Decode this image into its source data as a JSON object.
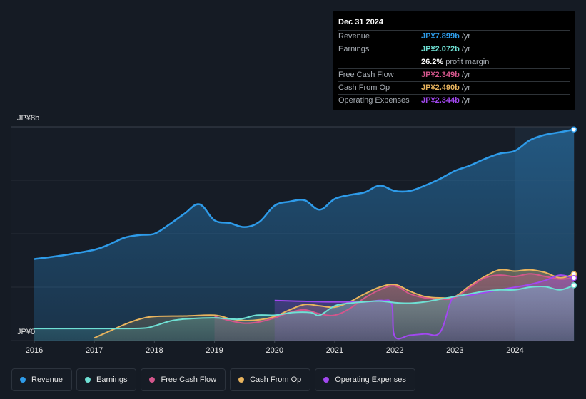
{
  "chart_data": {
    "type": "area",
    "x_labels": [
      "2016",
      "2017",
      "2018",
      "2019",
      "2020",
      "2021",
      "2022",
      "2023",
      "2024"
    ],
    "x_range": [
      2015.95,
      2024.98
    ],
    "y_labels": {
      "top": "JP¥8b",
      "bottom": "JP¥0"
    },
    "ylim": [
      0,
      8
    ],
    "forecast_start": 2024.0,
    "series": [
      {
        "key": "revenue",
        "name": "Revenue",
        "color": "#2e9be9",
        "points": [
          [
            2016,
            3.05
          ],
          [
            2016.5,
            3.2
          ],
          [
            2017,
            3.4
          ],
          [
            2017.25,
            3.6
          ],
          [
            2017.5,
            3.85
          ],
          [
            2017.75,
            3.95
          ],
          [
            2018,
            4.0
          ],
          [
            2018.25,
            4.35
          ],
          [
            2018.5,
            4.75
          ],
          [
            2018.75,
            5.1
          ],
          [
            2019,
            4.5
          ],
          [
            2019.25,
            4.4
          ],
          [
            2019.5,
            4.25
          ],
          [
            2019.75,
            4.45
          ],
          [
            2020,
            5.05
          ],
          [
            2020.25,
            5.2
          ],
          [
            2020.5,
            5.25
          ],
          [
            2020.75,
            4.9
          ],
          [
            2021,
            5.3
          ],
          [
            2021.25,
            5.45
          ],
          [
            2021.5,
            5.55
          ],
          [
            2021.75,
            5.8
          ],
          [
            2022,
            5.6
          ],
          [
            2022.25,
            5.6
          ],
          [
            2022.5,
            5.8
          ],
          [
            2022.75,
            6.05
          ],
          [
            2023,
            6.35
          ],
          [
            2023.25,
            6.55
          ],
          [
            2023.5,
            6.8
          ],
          [
            2023.75,
            7.0
          ],
          [
            2024,
            7.1
          ],
          [
            2024.25,
            7.5
          ],
          [
            2024.5,
            7.7
          ],
          [
            2024.75,
            7.8
          ],
          [
            2024.98,
            7.9
          ]
        ]
      },
      {
        "key": "earnings",
        "name": "Earnings",
        "color": "#6fe0d4",
        "points": [
          [
            2016,
            0.45
          ],
          [
            2016.5,
            0.45
          ],
          [
            2017,
            0.45
          ],
          [
            2017.5,
            0.45
          ],
          [
            2017.85,
            0.47
          ],
          [
            2018,
            0.55
          ],
          [
            2018.3,
            0.75
          ],
          [
            2018.6,
            0.82
          ],
          [
            2019,
            0.85
          ],
          [
            2019.4,
            0.8
          ],
          [
            2019.7,
            0.95
          ],
          [
            2020,
            0.95
          ],
          [
            2020.3,
            1.05
          ],
          [
            2020.6,
            1.05
          ],
          [
            2020.75,
            0.95
          ],
          [
            2021,
            1.3
          ],
          [
            2021.25,
            1.4
          ],
          [
            2021.5,
            1.45
          ],
          [
            2021.75,
            1.48
          ],
          [
            2022,
            1.42
          ],
          [
            2022.25,
            1.4
          ],
          [
            2022.5,
            1.45
          ],
          [
            2022.75,
            1.55
          ],
          [
            2023,
            1.65
          ],
          [
            2023.25,
            1.75
          ],
          [
            2023.5,
            1.85
          ],
          [
            2023.75,
            1.9
          ],
          [
            2024,
            1.9
          ],
          [
            2024.25,
            2.0
          ],
          [
            2024.5,
            2.02
          ],
          [
            2024.75,
            1.9
          ],
          [
            2024.98,
            2.07
          ]
        ]
      },
      {
        "key": "fcf",
        "name": "Free Cash Flow",
        "color": "#d4568c",
        "points": [
          [
            2019,
            0.9
          ],
          [
            2019.25,
            0.75
          ],
          [
            2019.5,
            0.65
          ],
          [
            2019.75,
            0.7
          ],
          [
            2020,
            0.85
          ],
          [
            2020.25,
            1.05
          ],
          [
            2020.5,
            1.15
          ],
          [
            2020.75,
            1.0
          ],
          [
            2021,
            0.95
          ],
          [
            2021.25,
            1.2
          ],
          [
            2021.5,
            1.6
          ],
          [
            2021.75,
            1.9
          ],
          [
            2022,
            2.05
          ],
          [
            2022.25,
            1.75
          ],
          [
            2022.5,
            1.6
          ],
          [
            2022.75,
            1.55
          ],
          [
            2023,
            1.6
          ],
          [
            2023.25,
            2.0
          ],
          [
            2023.5,
            2.35
          ],
          [
            2023.75,
            2.45
          ],
          [
            2024,
            2.4
          ],
          [
            2024.25,
            2.5
          ],
          [
            2024.5,
            2.4
          ],
          [
            2024.75,
            2.3
          ],
          [
            2024.98,
            2.35
          ]
        ]
      },
      {
        "key": "cfo",
        "name": "Cash From Op",
        "color": "#e9b45e",
        "points": [
          [
            2017,
            0.1
          ],
          [
            2017.25,
            0.35
          ],
          [
            2017.5,
            0.6
          ],
          [
            2017.75,
            0.8
          ],
          [
            2018,
            0.9
          ],
          [
            2018.5,
            0.92
          ],
          [
            2019,
            0.95
          ],
          [
            2019.25,
            0.82
          ],
          [
            2019.5,
            0.75
          ],
          [
            2019.75,
            0.78
          ],
          [
            2020,
            0.9
          ],
          [
            2020.25,
            1.15
          ],
          [
            2020.5,
            1.35
          ],
          [
            2020.75,
            1.3
          ],
          [
            2021,
            1.25
          ],
          [
            2021.25,
            1.45
          ],
          [
            2021.5,
            1.75
          ],
          [
            2021.75,
            2.0
          ],
          [
            2022,
            2.1
          ],
          [
            2022.25,
            1.85
          ],
          [
            2022.5,
            1.65
          ],
          [
            2022.75,
            1.6
          ],
          [
            2023,
            1.65
          ],
          [
            2023.25,
            2.05
          ],
          [
            2023.5,
            2.4
          ],
          [
            2023.75,
            2.65
          ],
          [
            2024,
            2.6
          ],
          [
            2024.25,
            2.65
          ],
          [
            2024.5,
            2.55
          ],
          [
            2024.75,
            2.35
          ],
          [
            2024.98,
            2.49
          ]
        ]
      },
      {
        "key": "opex",
        "name": "Operating Expenses",
        "color": "#a248f0",
        "points": [
          [
            2020,
            1.5
          ],
          [
            2020.5,
            1.47
          ],
          [
            2021,
            1.45
          ],
          [
            2021.5,
            1.45
          ],
          [
            2021.8,
            1.5
          ],
          [
            2021.95,
            1.35
          ],
          [
            2022.0,
            0.15
          ],
          [
            2022.25,
            0.2
          ],
          [
            2022.5,
            0.25
          ],
          [
            2022.75,
            0.3
          ],
          [
            2022.92,
            1.4
          ],
          [
            2023,
            1.65
          ],
          [
            2023.25,
            1.7
          ],
          [
            2023.5,
            1.8
          ],
          [
            2023.75,
            1.9
          ],
          [
            2024,
            2.0
          ],
          [
            2024.25,
            2.1
          ],
          [
            2024.5,
            2.25
          ],
          [
            2024.75,
            2.45
          ],
          [
            2024.98,
            2.34
          ]
        ]
      }
    ]
  },
  "tooltip": {
    "date": "Dec 31 2024",
    "rows": [
      {
        "label": "Revenue",
        "value": "JP¥7.899b",
        "unit": "/yr",
        "color": "#2e9be9"
      },
      {
        "label": "Earnings",
        "value": "JP¥2.072b",
        "unit": "/yr",
        "color": "#6fe0d4"
      },
      {
        "label": "",
        "value": "26.2%",
        "unit": "profit margin",
        "color": "#ffffff"
      },
      {
        "label": "Free Cash Flow",
        "value": "JP¥2.349b",
        "unit": "/yr",
        "color": "#d4568c"
      },
      {
        "label": "Cash From Op",
        "value": "JP¥2.490b",
        "unit": "/yr",
        "color": "#e9b45e"
      },
      {
        "label": "Operating Expenses",
        "value": "JP¥2.344b",
        "unit": "/yr",
        "color": "#a248f0"
      }
    ]
  },
  "legend": [
    {
      "label": "Revenue",
      "color": "#2e9be9"
    },
    {
      "label": "Earnings",
      "color": "#6fe0d4"
    },
    {
      "label": "Free Cash Flow",
      "color": "#d4568c"
    },
    {
      "label": "Cash From Op",
      "color": "#e9b45e"
    },
    {
      "label": "Operating Expenses",
      "color": "#a248f0"
    }
  ]
}
